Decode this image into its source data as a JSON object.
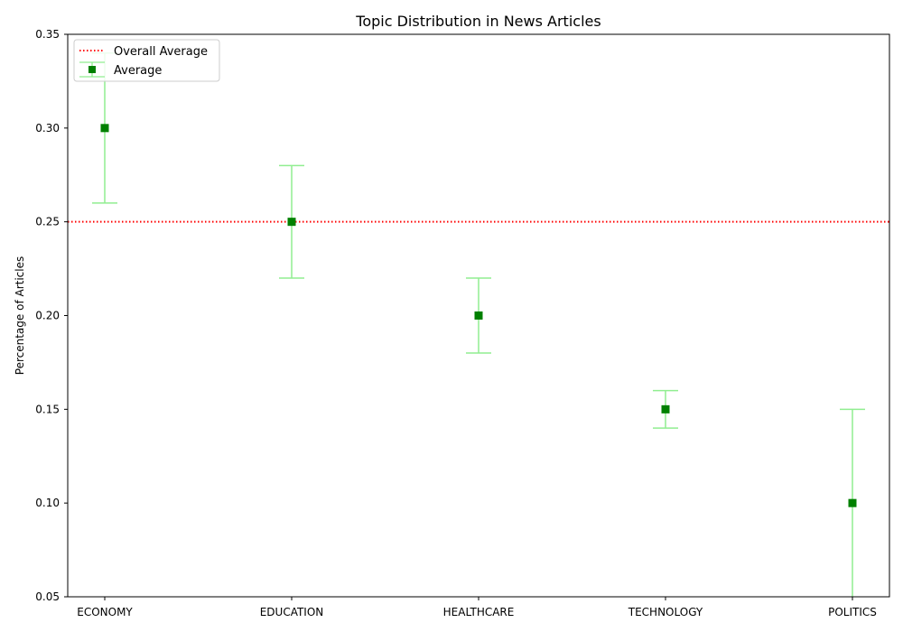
{
  "chart_data": {
    "type": "scatter",
    "title": "Topic Distribution in News Articles",
    "xlabel": "",
    "ylabel": "Percentage of Articles",
    "categories": [
      "ECONOMY",
      "EDUCATION",
      "HEALTHCARE",
      "TECHNOLOGY",
      "POLITICS"
    ],
    "series": [
      {
        "name": "Average",
        "values": [
          0.3,
          0.25,
          0.2,
          0.15,
          0.1
        ],
        "lower": [
          0.26,
          0.22,
          0.18,
          0.14,
          0.04
        ],
        "upper": [
          0.34,
          0.28,
          0.22,
          0.16,
          0.15
        ],
        "color": "#008000",
        "error_color": "#90ee90",
        "marker": "square"
      }
    ],
    "reference_lines": [
      {
        "name": "Overall Average",
        "y": 0.25,
        "color": "#ff0000",
        "style": "dotted"
      }
    ],
    "ylim": [
      0.05,
      0.35
    ],
    "yticks": [
      "0.05",
      "0.10",
      "0.15",
      "0.20",
      "0.25",
      "0.30",
      "0.35"
    ],
    "grid": false,
    "legend_position": "top-left"
  }
}
